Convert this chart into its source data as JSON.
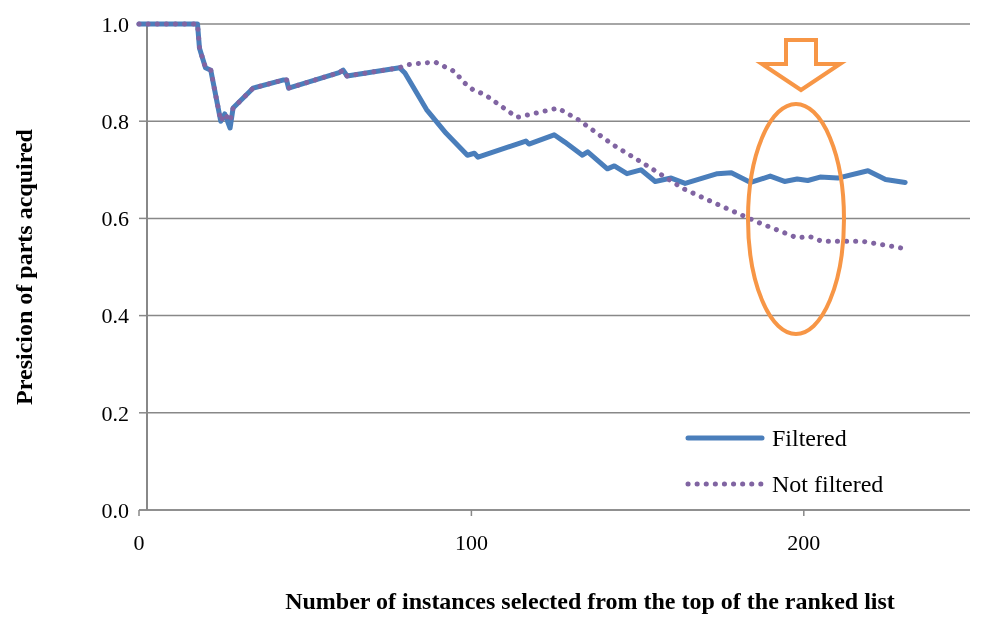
{
  "chart_data": {
    "type": "line",
    "xlabel": "Number of instances selected from the top of the ranked list",
    "ylabel": "Presicion of parts acquired",
    "xlim": [
      0,
      250
    ],
    "ylim": [
      0,
      1
    ],
    "xticks": [
      0,
      100,
      200
    ],
    "yticks": [
      {
        "value": 0,
        "label": "0.0"
      },
      {
        "value": 0.2,
        "label": "0.2"
      },
      {
        "value": 0.4,
        "label": "0.4"
      },
      {
        "value": 0.6,
        "label": "0.6"
      },
      {
        "value": 0.8,
        "label": "0.8"
      },
      {
        "value": 1,
        "label": "1.0"
      }
    ],
    "grid": "y",
    "legend": "bottom right",
    "marker": "none",
    "series": [
      {
        "name": "Filtered",
        "color": "#4a7ebb",
        "line_style": "solid",
        "x": [
          0,
          17.6,
          18.2,
          20,
          21.6,
          24.6,
          25.8,
          27.4,
          28.3,
          34.3,
          43.5,
          44.4,
          45,
          60.2,
          61.4,
          62.6,
          78.4,
          80,
          86.5,
          92.4,
          98.8,
          100.9,
          102,
          116.4,
          117.3,
          124.9,
          128.1,
          133.4,
          135,
          140.9,
          143,
          146.8,
          151,
          155.3,
          160.1,
          164.3,
          174,
          178.2,
          184,
          189.9,
          194.2,
          198,
          201.2,
          204.9,
          210.2,
          219.3,
          224.6,
          230.5
        ],
        "values": [
          1,
          1,
          0.95,
          0.91,
          0.905,
          0.8,
          0.815,
          0.786,
          0.827,
          0.868,
          0.885,
          0.885,
          0.868,
          0.9,
          0.905,
          0.893,
          0.91,
          0.899,
          0.824,
          0.775,
          0.73,
          0.734,
          0.726,
          0.759,
          0.753,
          0.772,
          0.757,
          0.73,
          0.737,
          0.702,
          0.708,
          0.692,
          0.7,
          0.676,
          0.683,
          0.672,
          0.692,
          0.694,
          0.674,
          0.687,
          0.676,
          0.681,
          0.678,
          0.685,
          0.683,
          0.698,
          0.68,
          0.674
        ]
      },
      {
        "name": "Not filtered",
        "color": "#8064a2",
        "line_style": "dotted",
        "x": [
          0,
          17.6,
          18.2,
          20,
          21.6,
          24.6,
          25.8,
          27.4,
          28.3,
          34.3,
          43.5,
          44.4,
          45,
          60.2,
          61.4,
          62.6,
          78.4,
          80.4,
          89,
          95,
          97.7,
          100.6,
          104,
          113.7,
          126,
          132.4,
          142.5,
          153.2,
          163.8,
          175,
          186.2,
          198,
          201.7,
          205.4,
          217.6,
          229.4
        ],
        "values": [
          1,
          1,
          0.95,
          0.91,
          0.905,
          0.8,
          0.815,
          0.8,
          0.827,
          0.868,
          0.885,
          0.885,
          0.868,
          0.9,
          0.905,
          0.893,
          0.91,
          0.916,
          0.922,
          0.902,
          0.88,
          0.864,
          0.855,
          0.808,
          0.827,
          0.802,
          0.752,
          0.707,
          0.661,
          0.626,
          0.592,
          0.56,
          0.563,
          0.553,
          0.553,
          0.539
        ]
      }
    ]
  }
}
